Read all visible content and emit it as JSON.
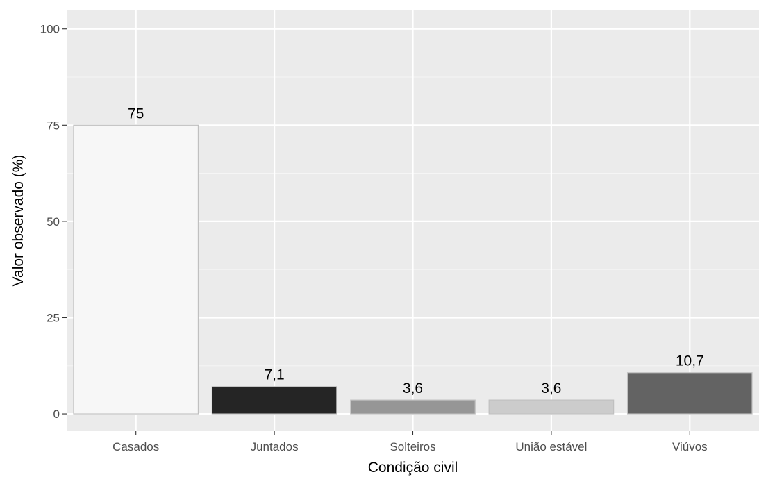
{
  "chart_data": {
    "type": "bar",
    "title": "",
    "xlabel": "Condição civil",
    "ylabel": "Valor observado (%)",
    "categories": [
      "Casados",
      "Juntados",
      "Solteiros",
      "União estável",
      "Viúvos"
    ],
    "values": [
      75,
      7.1,
      3.6,
      3.6,
      10.7
    ],
    "data_labels": [
      "75",
      "7,1",
      "3,6",
      "3,6",
      "10,7"
    ],
    "ylim": [
      -4.5,
      105
    ],
    "yticks": [
      0,
      25,
      50,
      75,
      100
    ],
    "ytick_labels": [
      "0",
      "25",
      "50",
      "75",
      "100"
    ],
    "grid": true,
    "legend": "none",
    "colors": {
      "panel_background": "#ebebeb",
      "grid_major": "#ffffff",
      "grid_minor": "#f5f5f5",
      "tick_text": "#4d4d4d",
      "tick_mark": "#333333",
      "bar_outline": "#c0c0c0",
      "bar_fills": [
        "#f7f7f7",
        "#252525",
        "#969696",
        "#cccccc",
        "#636363"
      ]
    }
  }
}
